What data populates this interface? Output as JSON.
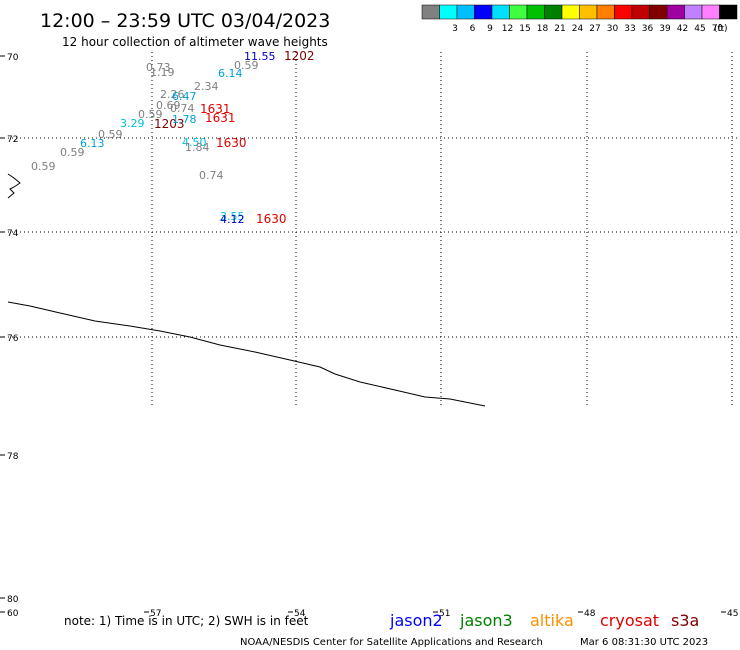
{
  "header": {
    "title": "12:00 – 23:59 UTC 03/04/2023",
    "subtitle": "12 hour collection of altimeter wave heights"
  },
  "legend": {
    "unit": "(ft)",
    "bins": [
      {
        "label": "",
        "color": "#808080"
      },
      {
        "label": "3",
        "color": "#00ffff"
      },
      {
        "label": "6",
        "color": "#00bfff"
      },
      {
        "label": "9",
        "color": "#0000ff"
      },
      {
        "label": "12",
        "color": "#00dfff"
      },
      {
        "label": "15",
        "color": "#40ff40"
      },
      {
        "label": "18",
        "color": "#00c000"
      },
      {
        "label": "21",
        "color": "#008000"
      },
      {
        "label": "24",
        "color": "#ffff00"
      },
      {
        "label": "27",
        "color": "#ffc000"
      },
      {
        "label": "30",
        "color": "#ff8000"
      },
      {
        "label": "33",
        "color": "#ff0000"
      },
      {
        "label": "36",
        "color": "#c00000"
      },
      {
        "label": "39",
        "color": "#800000"
      },
      {
        "label": "42",
        "color": "#a000a0"
      },
      {
        "label": "45",
        "color": "#c080ff"
      },
      {
        "label": "70",
        "color": "#ff80ff"
      },
      {
        "label": "",
        "color": "#000000"
      }
    ]
  },
  "lat_labels": [
    "70",
    "72",
    "74",
    "76",
    "78",
    "80"
  ],
  "lon_labels": [
    "60",
    "57",
    "54",
    "51",
    "48",
    "45"
  ],
  "observations": [
    {
      "text": "11.55",
      "color": "#0000c0"
    },
    {
      "text": "1202",
      "color": "#800000"
    },
    {
      "text": "0.73",
      "color": "#808080"
    },
    {
      "text": "1.19",
      "color": "#808080"
    },
    {
      "text": "0.59",
      "color": "#808080"
    },
    {
      "text": "6.14",
      "color": "#00a0e0"
    },
    {
      "text": "2.34",
      "color": "#808080"
    },
    {
      "text": "2.26",
      "color": "#808080"
    },
    {
      "text": "6.47",
      "color": "#00a0e0"
    },
    {
      "text": "0.69",
      "color": "#808080"
    },
    {
      "text": "0.74",
      "color": "#808080"
    },
    {
      "text": "1631",
      "color": "#e00000"
    },
    {
      "text": "0.59",
      "color": "#808080"
    },
    {
      "text": "1631",
      "color": "#e00000"
    },
    {
      "text": "1203",
      "color": "#800000"
    },
    {
      "text": "1.78",
      "color": "#00a0e0"
    },
    {
      "text": "3.29",
      "color": "#00c0e0"
    },
    {
      "text": "0.59",
      "color": "#808080"
    },
    {
      "text": "4.50",
      "color": "#00c0e0"
    },
    {
      "text": "1630",
      "color": "#e00000"
    },
    {
      "text": "6.13",
      "color": "#00a0e0"
    },
    {
      "text": "1.84",
      "color": "#808080"
    },
    {
      "text": "0.59",
      "color": "#808080"
    },
    {
      "text": "0.59",
      "color": "#808080"
    },
    {
      "text": "0.74",
      "color": "#808080"
    },
    {
      "text": "3.55",
      "color": "#00c0e0"
    },
    {
      "text": "4.12",
      "color": "#0000c0"
    },
    {
      "text": "1630",
      "color": "#e00000"
    }
  ],
  "footer": {
    "note": "note: 1) Time is in UTC; 2) SWH is in feet",
    "missions": [
      {
        "name": "jason2",
        "color": "#0000ff"
      },
      {
        "name": "jason3",
        "color": "#008000"
      },
      {
        "name": "altika",
        "color": "#ff9000"
      },
      {
        "name": "cryosat",
        "color": "#e00000"
      },
      {
        "name": "s3a",
        "color": "#800000"
      }
    ],
    "credit": "NOAA/NESDIS Center for Satellite Applications and Research",
    "timestamp": "Mar  6 08:31:30 UTC 2023"
  }
}
